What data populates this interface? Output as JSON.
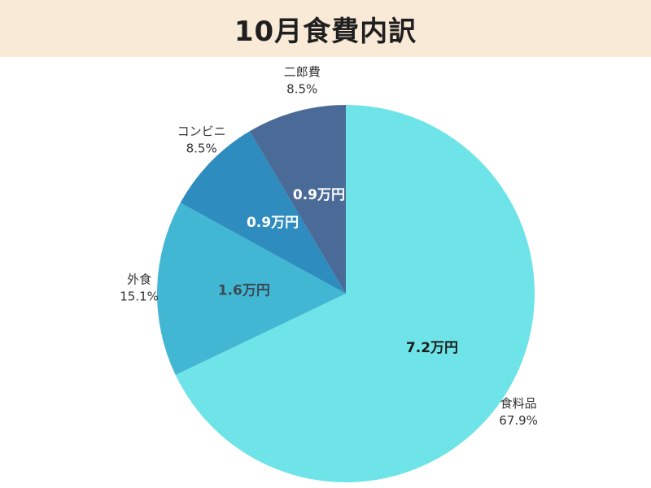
{
  "title": "10月食費内訳",
  "colors": {
    "header_bg": "#f8ead7"
  },
  "chart_data": {
    "type": "pie",
    "title": "10月食費内訳",
    "start_angle_deg": 0,
    "direction": "clockwise",
    "slices": [
      {
        "name": "食料品",
        "percent": "67.9%",
        "fraction": 0.679,
        "value_label": "7.2万円",
        "value": 7.2,
        "color": "#6ee4e8",
        "value_color": "#1d1d1d"
      },
      {
        "name": "外食",
        "percent": "15.1%",
        "fraction": 0.151,
        "value_label": "1.6万円",
        "value": 1.6,
        "color": "#42b7d4",
        "value_color": "#3a4a55"
      },
      {
        "name": "コンビニ",
        "percent": "8.5%",
        "fraction": 0.085,
        "value_label": "0.9万円",
        "value": 0.9,
        "color": "#2e8cbe",
        "value_color": "#ffffff"
      },
      {
        "name": "二郎費",
        "percent": "8.5%",
        "fraction": 0.085,
        "value_label": "0.9万円",
        "value": 0.9,
        "color": "#4a6b97",
        "value_color": "#ffffff"
      }
    ]
  }
}
